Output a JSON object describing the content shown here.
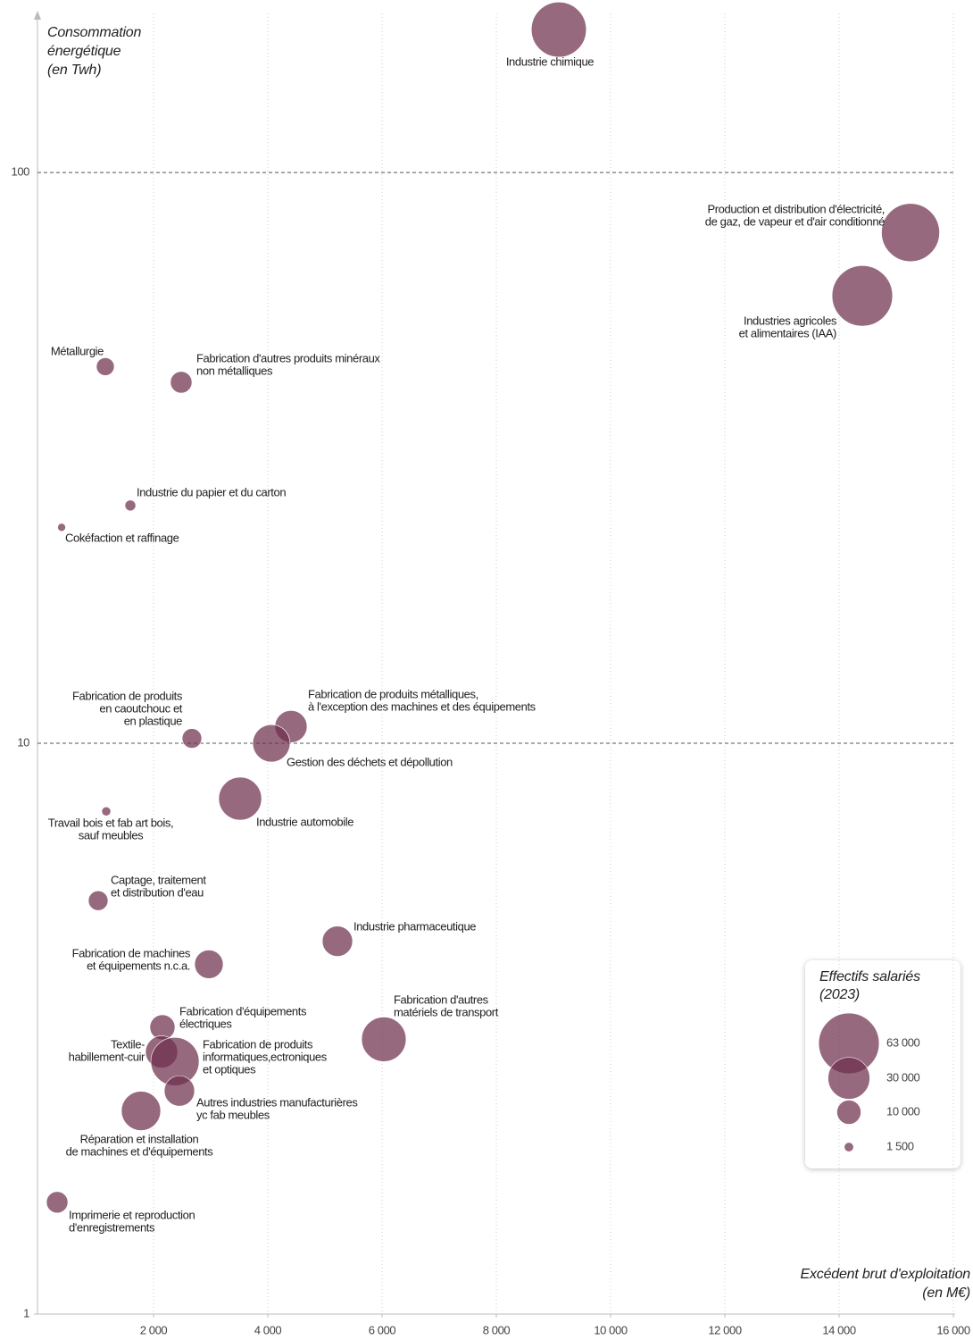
{
  "chart_data": {
    "type": "bubble",
    "y_label": [
      "Consommation",
      "énergétique",
      "(en Twh)"
    ],
    "x_label": [
      "Excédent brut d'exploitation",
      "(en M€)"
    ],
    "xlim": [
      0,
      16000
    ],
    "xticks": [
      {
        "value": 2000,
        "label": "2 000"
      },
      {
        "value": 4000,
        "label": "4 000"
      },
      {
        "value": 6000,
        "label": "6 000"
      },
      {
        "value": 8000,
        "label": "8 000"
      },
      {
        "value": 10000,
        "label": "10 000"
      },
      {
        "value": 12000,
        "label": "12 000"
      },
      {
        "value": 14000,
        "label": "14 000"
      },
      {
        "value": 16000,
        "label": "16 000"
      }
    ],
    "ylim": [
      1,
      190
    ],
    "yticks": [
      1,
      10,
      100
    ],
    "log_y": true,
    "grid": true,
    "color": "#6e2f4c",
    "labels": [
      [
        "Industrie chimique"
      ],
      [
        "Production et distribution d'électricité,",
        "de gaz, de vapeur et d'air conditionné"
      ],
      [
        "Industries agricoles",
        "et alimentaires (IAA)"
      ],
      [
        "Métallurgie"
      ],
      [
        "Fabrication d'autres produits minéraux",
        "non métalliques"
      ],
      [
        "Industrie du papier et du carton"
      ],
      [
        "Cokéfaction et raffinage"
      ],
      [
        "Fabrication de produits",
        "en caoutchouc et",
        "en plastique"
      ],
      [
        "Fabrication de produits métalliques,",
        "à l'exception des machines et des équipements"
      ],
      [
        "Gestion des déchets et dépollution"
      ],
      [
        "Industrie automobile"
      ],
      [
        "Travail bois et fab art bois,",
        "sauf meubles"
      ],
      [
        "Captage, traitement",
        "et distribution d'eau"
      ],
      [
        "Industrie pharmaceutique"
      ],
      [
        "Fabrication de machines",
        "et équipements n.c.a."
      ],
      [
        "Fabrication d'autres",
        "matériels de transport"
      ],
      [
        "Fabrication d'équipements",
        "électriques"
      ],
      [
        "Textile-",
        "habillement-cuir"
      ],
      [
        "Fabrication de produits",
        "informatiques,ectroniques",
        "et optiques"
      ],
      [
        "Autres industries manufacturières",
        "yc fab meubles"
      ],
      [
        "Réparation et installation",
        "de machines et d'équipements"
      ],
      [
        "Imprimerie et reproduction",
        "d'enregistrements"
      ]
    ],
    "x": [
      9094,
      15250,
      14406,
      1156,
      2484,
      1594,
      391,
      2672,
      4406,
      4063,
      3516,
      1172,
      1031,
      5219,
      2969,
      6031,
      2156,
      2141,
      2375,
      2453,
      1781,
      313
    ],
    "y": [
      178,
      78.5,
      60.8,
      45.7,
      42.9,
      26.1,
      23.9,
      10.2,
      10.7,
      10,
      8,
      7.6,
      5.3,
      4.5,
      4.1,
      3.03,
      3.18,
      2.88,
      2.77,
      2.46,
      2.27,
      1.57
    ],
    "sizes": [
      52000,
      58000,
      63000,
      5500,
      8000,
      2000,
      1100,
      6600,
      17800,
      24000,
      31600,
      1400,
      6600,
      15800,
      14000,
      34000,
      10800,
      17800,
      40000,
      15800,
      26500,
      7900
    ],
    "legend_title": [
      "Effectifs salariés",
      "(2023)"
    ],
    "size_legend": [
      {
        "value": 63000,
        "label": "63 000"
      },
      {
        "value": 30000,
        "label": "30 000"
      },
      {
        "value": 10000,
        "label": "10 000"
      },
      {
        "value": 1500,
        "label": "1 500"
      }
    ]
  }
}
